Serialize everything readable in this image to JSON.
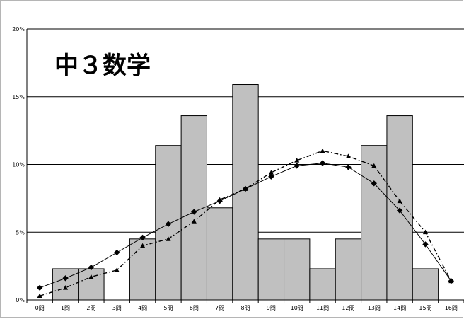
{
  "chart_data": {
    "type": "bar",
    "title": "中３数学",
    "xlabel": "",
    "ylabel": "",
    "ylim": [
      0,
      20
    ],
    "y_ticks": [
      "0%",
      "5%",
      "10%",
      "15%",
      "20%"
    ],
    "grid": true,
    "categories": [
      "0問",
      "1問",
      "2問",
      "3問",
      "4問",
      "5問",
      "6問",
      "7問",
      "8問",
      "9問",
      "10問",
      "11問",
      "12問",
      "13問",
      "14問",
      "15問",
      "16問"
    ],
    "series": [
      {
        "kind": "bar",
        "color": "#c0c0c0",
        "values": [
          0,
          2.3,
          2.3,
          0,
          4.5,
          11.4,
          13.6,
          6.8,
          15.9,
          4.5,
          4.5,
          2.3,
          4.5,
          11.4,
          13.6,
          2.3,
          0
        ]
      },
      {
        "kind": "line",
        "style": "solid",
        "marker": "diamond",
        "color": "#000000",
        "values": [
          0.9,
          1.6,
          2.4,
          3.5,
          4.6,
          5.6,
          6.5,
          7.3,
          8.2,
          9.1,
          9.9,
          10.1,
          9.8,
          8.6,
          6.6,
          4.1,
          1.4
        ]
      },
      {
        "kind": "line",
        "style": "dash-dot",
        "marker": "triangle",
        "color": "#000000",
        "values": [
          0.3,
          0.9,
          1.7,
          2.2,
          4.0,
          4.5,
          5.8,
          7.4,
          8.2,
          9.4,
          10.3,
          11.0,
          10.6,
          9.9,
          7.3,
          5.0,
          1.4
        ]
      }
    ]
  }
}
